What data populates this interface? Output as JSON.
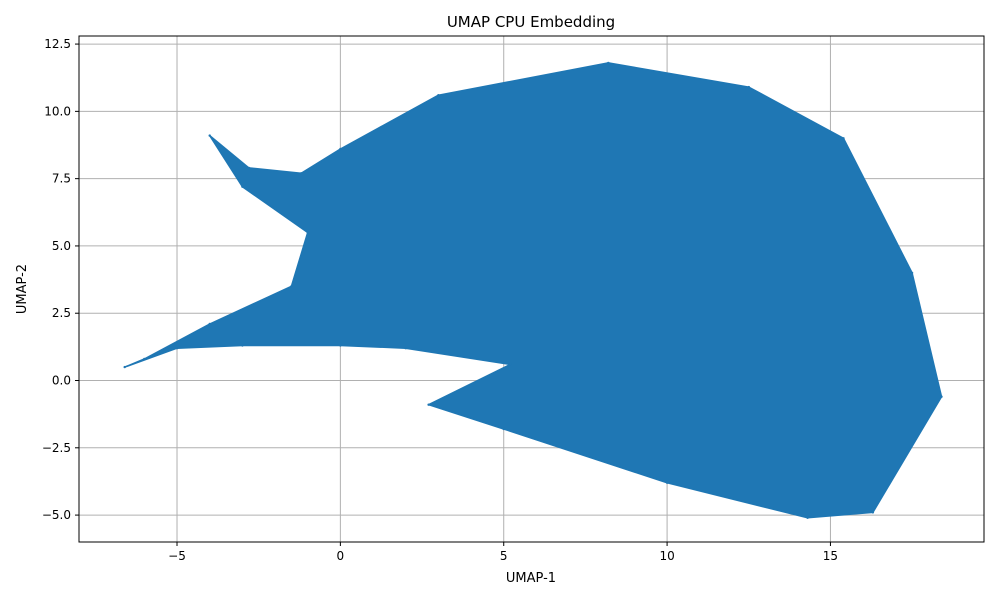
{
  "chart_data": {
    "type": "scatter",
    "title": "UMAP CPU Embedding",
    "xlabel": "UMAP-1",
    "ylabel": "UMAP-2",
    "xlim": [
      -8.0,
      19.7
    ],
    "ylim": [
      -6.0,
      12.8
    ],
    "xticks": [
      -5,
      0,
      5,
      10,
      15
    ],
    "yticks": [
      -5.0,
      -2.5,
      0.0,
      2.5,
      5.0,
      7.5,
      10.0,
      12.5
    ],
    "xtick_labels": [
      "−5",
      "0",
      "5",
      "10",
      "15"
    ],
    "ytick_labels": [
      "−5.0",
      "−2.5",
      "0.0",
      "2.5",
      "5.0",
      "7.5",
      "10.0",
      "12.5"
    ],
    "grid": true,
    "point_color": "#1f77b4",
    "series": [
      {
        "points": [
          [
            -6.6,
            0.5
          ],
          [
            -5.0,
            1.2
          ],
          [
            -3.0,
            1.3
          ],
          [
            0.0,
            1.3
          ],
          [
            2.0,
            1.2
          ],
          [
            5.2,
            0.6
          ],
          [
            2.7,
            -0.9
          ],
          [
            5.0,
            -1.8
          ],
          [
            10.0,
            -3.8
          ],
          [
            14.3,
            -5.1
          ],
          [
            16.3,
            -4.9
          ],
          [
            18.4,
            -0.6
          ],
          [
            17.5,
            4.0
          ],
          [
            15.4,
            9.0
          ],
          [
            12.5,
            10.9
          ],
          [
            8.2,
            11.8
          ],
          [
            3.0,
            10.6
          ],
          [
            0.0,
            8.6
          ],
          [
            -1.2,
            7.7
          ],
          [
            -2.8,
            7.9
          ],
          [
            -4.0,
            9.1
          ],
          [
            -3.0,
            7.2
          ],
          [
            -1.0,
            5.5
          ],
          [
            -1.5,
            3.5
          ],
          [
            -4.0,
            2.1
          ],
          [
            -6.0,
            0.8
          ]
        ]
      }
    ]
  }
}
